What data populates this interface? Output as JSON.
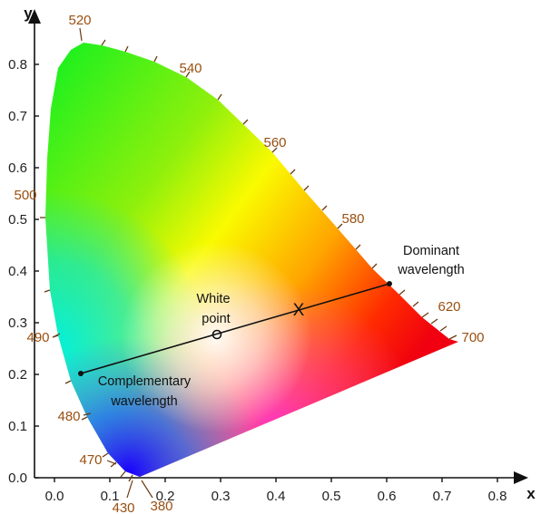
{
  "diagram": {
    "axes": {
      "x_name": "x",
      "y_name": "y",
      "x_ticks": [
        "0.0",
        "0.1",
        "0.2",
        "0.3",
        "0.4",
        "0.5",
        "0.6",
        "0.7",
        "0.8"
      ],
      "y_ticks": [
        "0.0",
        "0.1",
        "0.2",
        "0.3",
        "0.4",
        "0.5",
        "0.6",
        "0.7",
        "0.8"
      ]
    },
    "wavelength_labels": [
      "380",
      "430",
      "470",
      "480",
      "490",
      "500",
      "520",
      "540",
      "560",
      "580",
      "620",
      "700"
    ],
    "annotations": {
      "white_point_line1": "White",
      "white_point_line2": "point",
      "dominant_line1": "Dominant",
      "dominant_line2": "wavelength",
      "complementary_line1": "Complementary",
      "complementary_line2": "wavelength",
      "sample_marker": "X"
    },
    "colors": {
      "axis": "#111111",
      "wavelength_label": "#9a4f10",
      "locus_ticks": "#6b3a10",
      "line": "#111111"
    }
  }
}
